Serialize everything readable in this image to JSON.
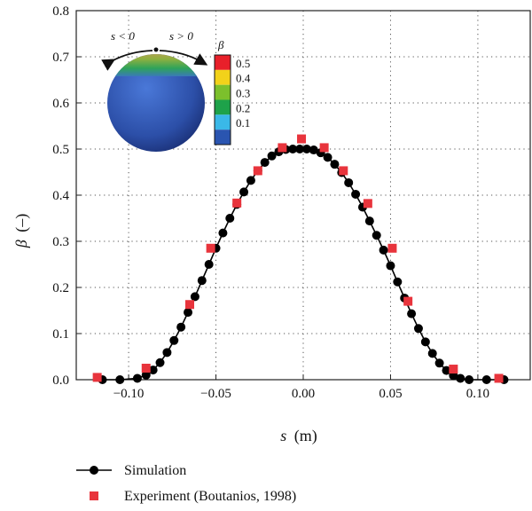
{
  "chart_data": {
    "type": "line",
    "xlabel_var": "s",
    "xlabel_unit": "(m)",
    "ylabel_var": "β",
    "ylabel_unit": "(–)",
    "xlim": [
      -0.13,
      0.13
    ],
    "ylim": [
      0,
      0.8
    ],
    "xticks": [
      -0.1,
      -0.05,
      0.0,
      0.05,
      0.1
    ],
    "xtick_labels": [
      "−0.10",
      "−0.05",
      "0.00",
      "0.05",
      "0.10"
    ],
    "yticks": [
      0.0,
      0.1,
      0.2,
      0.3,
      0.4,
      0.5,
      0.6,
      0.7,
      0.8
    ],
    "ytick_labels": [
      "0.0",
      "0.1",
      "0.2",
      "0.3",
      "0.4",
      "0.5",
      "0.6",
      "0.7",
      "0.8"
    ],
    "grid": true,
    "legend_position": "bottom-left outside",
    "series": [
      {
        "name": "Simulation",
        "style": "line-circle",
        "color": "#000000",
        "x": [
          -0.115,
          -0.105,
          -0.095,
          -0.09,
          -0.086,
          -0.082,
          -0.078,
          -0.074,
          -0.07,
          -0.066,
          -0.062,
          -0.058,
          -0.054,
          -0.05,
          -0.046,
          -0.042,
          -0.038,
          -0.034,
          -0.03,
          -0.026,
          -0.022,
          -0.018,
          -0.014,
          -0.01,
          -0.006,
          -0.002,
          0.002,
          0.006,
          0.01,
          0.014,
          0.018,
          0.022,
          0.026,
          0.03,
          0.034,
          0.038,
          0.042,
          0.046,
          0.05,
          0.054,
          0.058,
          0.062,
          0.066,
          0.07,
          0.074,
          0.078,
          0.082,
          0.086,
          0.09,
          0.095,
          0.105,
          0.115
        ],
        "y": [
          0.0,
          0.0,
          0.003,
          0.01,
          0.021,
          0.037,
          0.059,
          0.085,
          0.114,
          0.146,
          0.18,
          0.215,
          0.25,
          0.285,
          0.318,
          0.35,
          0.38,
          0.407,
          0.432,
          0.453,
          0.471,
          0.485,
          0.494,
          0.499,
          0.5,
          0.5,
          0.5,
          0.498,
          0.492,
          0.482,
          0.467,
          0.449,
          0.427,
          0.402,
          0.374,
          0.344,
          0.313,
          0.281,
          0.247,
          0.212,
          0.177,
          0.143,
          0.111,
          0.082,
          0.057,
          0.036,
          0.02,
          0.009,
          0.003,
          0.0,
          0.0,
          0.0
        ]
      },
      {
        "name": "Experiment (Boutanios, 1998)",
        "style": "square",
        "color": "#e8343c",
        "x": [
          -0.118,
          -0.09,
          -0.065,
          -0.053,
          -0.038,
          -0.026,
          -0.012,
          -0.001,
          0.012,
          0.023,
          0.037,
          0.051,
          0.06,
          0.086,
          0.112
        ],
        "y": [
          0.005,
          0.025,
          0.163,
          0.285,
          0.383,
          0.453,
          0.503,
          0.522,
          0.503,
          0.453,
          0.382,
          0.285,
          0.17,
          0.023,
          0.003
        ]
      }
    ],
    "inset": {
      "left_label": "s < 0",
      "right_label": "s > 0",
      "colorbar_title": "β",
      "colorbar_values": [
        "0.5",
        "0.4",
        "0.3",
        "0.2",
        "0.1"
      ],
      "colorbar_colors": [
        "#e8202a",
        "#f2d21a",
        "#7cc02c",
        "#1ea24a",
        "#3ab8e8",
        "#2a55b0"
      ]
    }
  }
}
